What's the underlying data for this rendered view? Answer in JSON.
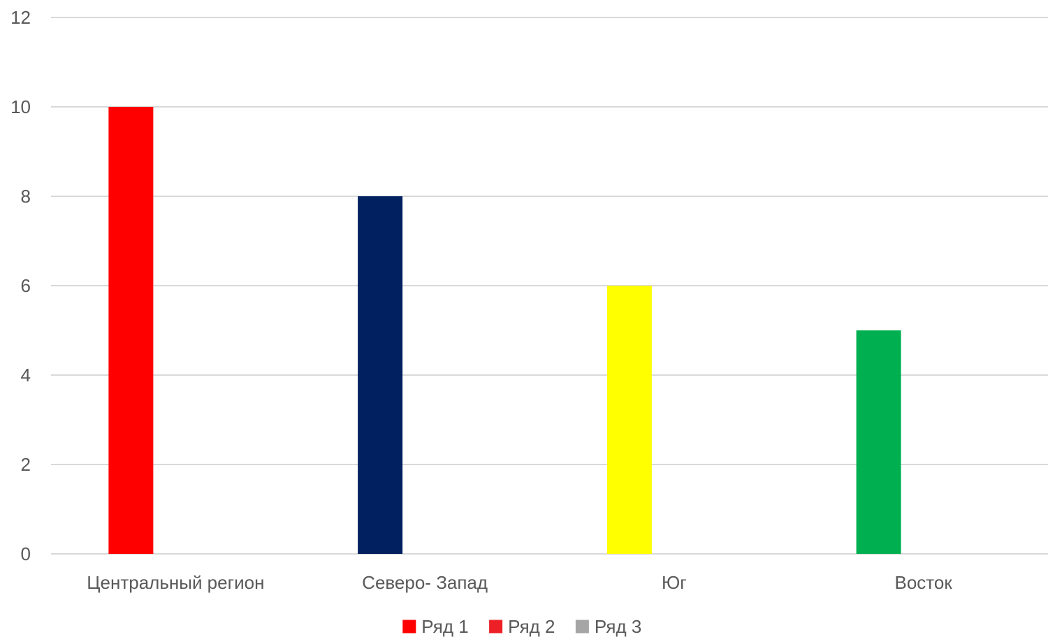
{
  "chart_data": {
    "type": "bar",
    "categories": [
      "Центральный регион",
      "Северо- Запад",
      "Юг",
      "Восток"
    ],
    "series": [
      {
        "name": "Ряд 1",
        "values": [
          10,
          8,
          6,
          5
        ],
        "color": "#ff0000",
        "point_colors": [
          "#ff0000",
          "#002060",
          "#ffff00",
          "#00b050"
        ]
      },
      {
        "name": "Ряд 2",
        "values": [
          0,
          0,
          0,
          0
        ],
        "color": "#ed2027"
      },
      {
        "name": "Ряд 3",
        "values": [
          0,
          0,
          0,
          0
        ],
        "color": "#a5a5a5"
      }
    ],
    "ylim": [
      0,
      12
    ],
    "yticks": [
      "0",
      "2",
      "4",
      "6",
      "8",
      "10",
      "12"
    ],
    "grid": true,
    "legend": "bottom",
    "title": "",
    "xlabel": "",
    "ylabel": ""
  }
}
